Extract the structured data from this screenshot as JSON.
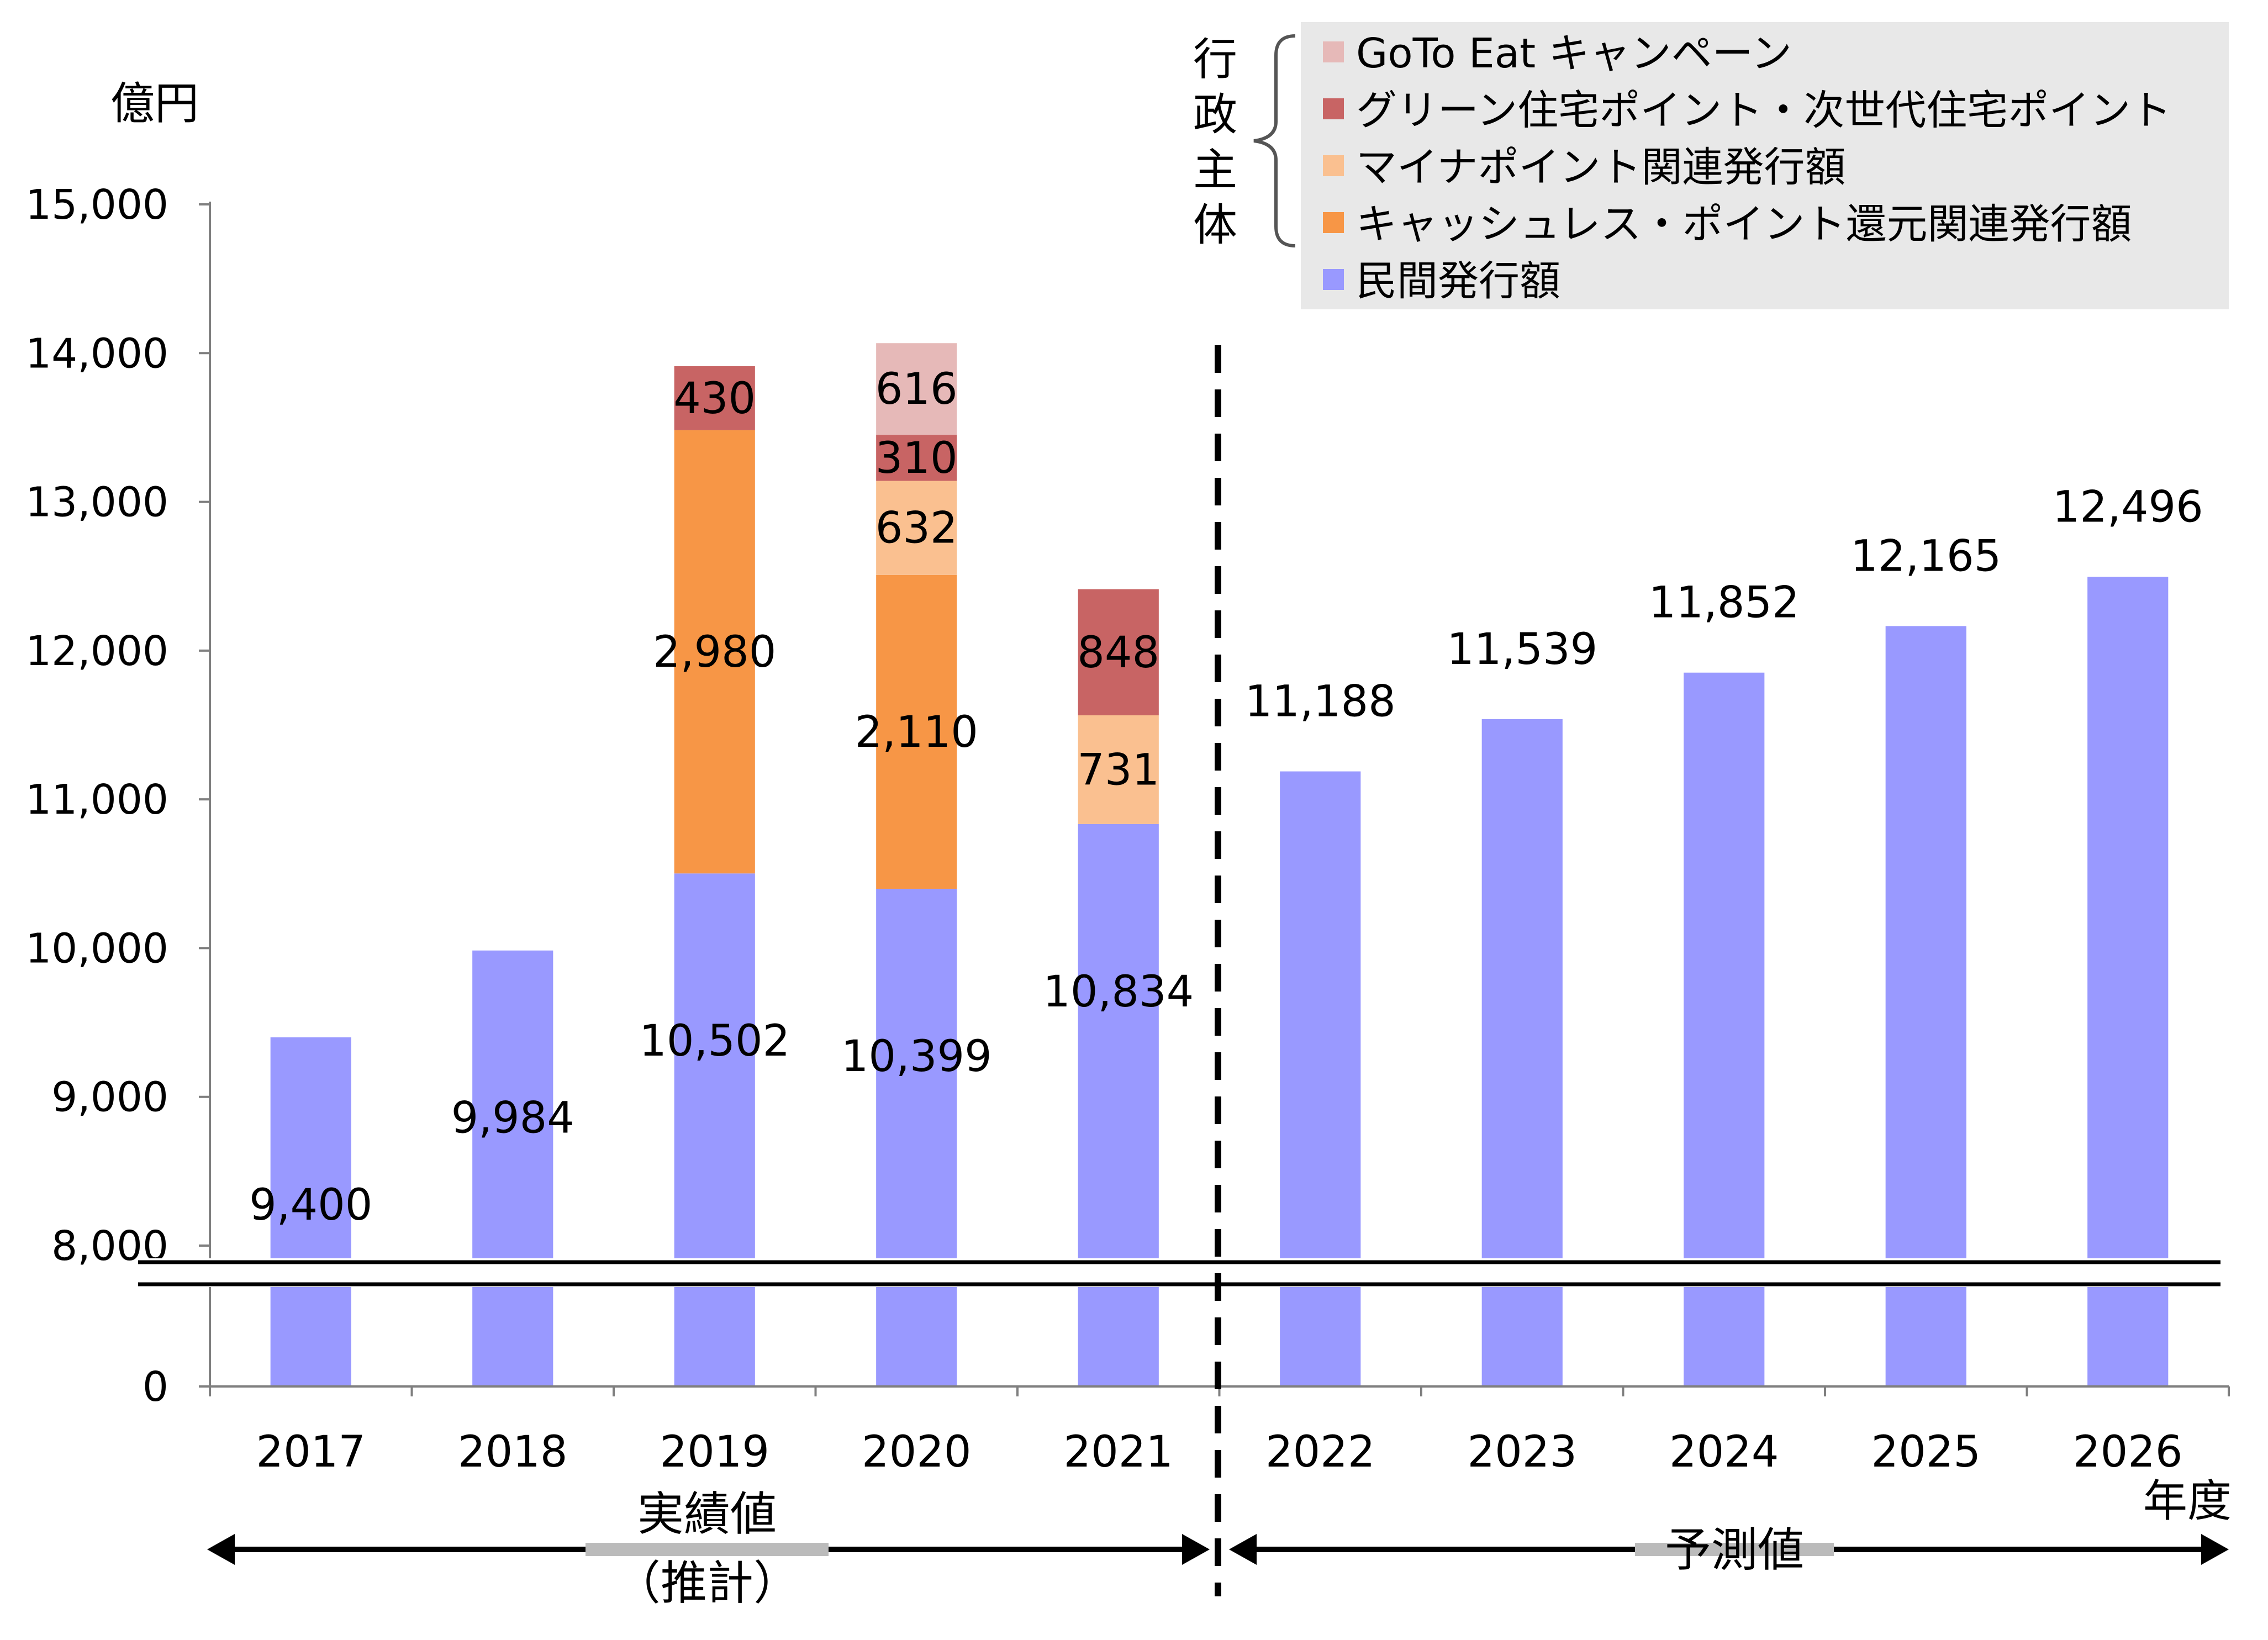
{
  "chart_data": {
    "type": "bar",
    "stacked": true,
    "unit_label": "億円",
    "xlabel": "年度",
    "categories": [
      "2017",
      "2018",
      "2019",
      "2020",
      "2021",
      "2022",
      "2023",
      "2024",
      "2025",
      "2026"
    ],
    "y_ticks": [
      "0",
      "8,000",
      "9,000",
      "10,000",
      "11,000",
      "12,000",
      "13,000",
      "14,000",
      "15,000"
    ],
    "ylim": [
      8000,
      15000
    ],
    "axis_break": "8000",
    "grid": false,
    "legend_position": "top-right",
    "series": [
      {
        "name": "民間発行額",
        "color": "#9999ff",
        "values": [
          9400,
          9984,
          10502,
          10399,
          10834,
          11188,
          11539,
          11852,
          12165,
          12496
        ],
        "labels": [
          "9,400",
          "9,984",
          "10,502",
          "10,399",
          "10,834",
          "11,188",
          "11,539",
          "11,852",
          "12,165",
          "12,496"
        ]
      },
      {
        "name": "キャッシュレス・ポイント還元関連発行額",
        "color": "#f79646",
        "values": [
          0,
          0,
          2980,
          2110,
          0,
          0,
          0,
          0,
          0,
          0
        ],
        "labels": [
          "",
          "",
          "2,980",
          "2,110",
          "",
          "",
          "",
          "",
          "",
          ""
        ]
      },
      {
        "name": "マイナポイント関連発行額",
        "color": "#fac090",
        "values": [
          0,
          0,
          0,
          632,
          731,
          0,
          0,
          0,
          0,
          0
        ],
        "labels": [
          "",
          "",
          "",
          "632",
          "731",
          "",
          "",
          "",
          "",
          ""
        ]
      },
      {
        "name": "グリーン住宅ポイント・次世代住宅ポイント",
        "color": "#c86464",
        "values": [
          0,
          0,
          430,
          310,
          848,
          0,
          0,
          0,
          0,
          0
        ],
        "labels": [
          "",
          "",
          "430",
          "310",
          "848",
          "",
          "",
          "",
          "",
          ""
        ]
      },
      {
        "name": "GoTo Eat キャンペーン",
        "color": "#e6b9b8",
        "values": [
          0,
          0,
          0,
          616,
          0,
          0,
          0,
          0,
          0,
          0
        ],
        "labels": [
          "",
          "",
          "",
          "616",
          "",
          "",
          "",
          "",
          "",
          ""
        ]
      }
    ],
    "legend_group_label": "行政主体",
    "actual_label": "実績値",
    "actual_sub_label": "（推計）",
    "forecast_label": "予測値"
  }
}
